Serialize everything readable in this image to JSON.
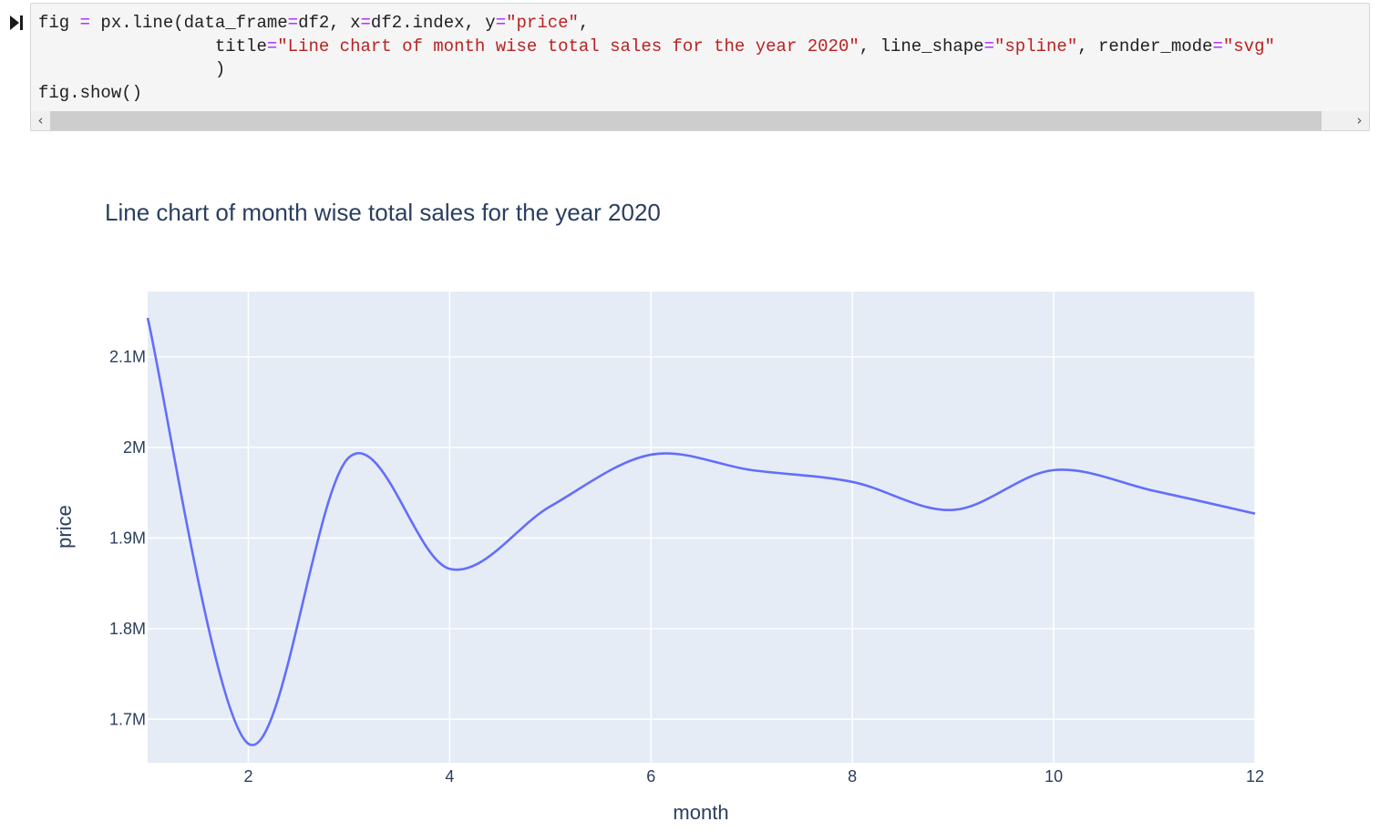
{
  "cell": {
    "code_lines": [
      [
        {
          "t": "fig "
        },
        {
          "t": "=",
          "c": "op"
        },
        {
          "t": " px.line(data_frame"
        },
        {
          "t": "=",
          "c": "op"
        },
        {
          "t": "df2, x"
        },
        {
          "t": "=",
          "c": "op"
        },
        {
          "t": "df2.index, y"
        },
        {
          "t": "=",
          "c": "op"
        },
        {
          "t": "\"price\"",
          "c": "str"
        },
        {
          "t": ","
        }
      ],
      [
        {
          "t": "                 title"
        },
        {
          "t": "=",
          "c": "op"
        },
        {
          "t": "\"Line chart of month wise total sales for the year 2020\"",
          "c": "str"
        },
        {
          "t": ", line_shape"
        },
        {
          "t": "=",
          "c": "op"
        },
        {
          "t": "\"spline\"",
          "c": "str"
        },
        {
          "t": ", render_mode"
        },
        {
          "t": "=",
          "c": "op"
        },
        {
          "t": "\"svg\"",
          "c": "str"
        }
      ],
      [
        {
          "t": "                 )"
        }
      ],
      [
        {
          "t": "fig.show()"
        }
      ]
    ],
    "scroll_left_glyph": "‹",
    "scroll_right_glyph": "›"
  },
  "colors": {
    "plot_bg": "#e5ecf6",
    "grid": "#ffffff",
    "line": "#636efa",
    "text": "#2a3f5f",
    "code_operator": "#aa22ff",
    "code_string": "#ba2121"
  },
  "chart_data": {
    "type": "line",
    "title": "Line chart of month wise total sales for the year 2020",
    "xlabel": "month",
    "ylabel": "price",
    "line_shape": "spline",
    "grid": true,
    "x": [
      1,
      2,
      3,
      4,
      5,
      6,
      7,
      8,
      9,
      10,
      11,
      12
    ],
    "series": [
      {
        "values": [
          2143000,
          1673000,
          1989000,
          1866000,
          1935000,
          1992000,
          1975000,
          1962000,
          1931000,
          1975000,
          1952000,
          1927000
        ]
      }
    ],
    "xlim": [
      1,
      12
    ],
    "ylim": [
      1652000,
      2172000
    ],
    "xticks": [
      2,
      4,
      6,
      8,
      10,
      12
    ],
    "xtick_labels": [
      "2",
      "4",
      "6",
      "8",
      "10",
      "12"
    ],
    "yticks": [
      1700000,
      1800000,
      1900000,
      2000000,
      2100000
    ],
    "ytick_labels": [
      "1.7M",
      "1.8M",
      "1.9M",
      "2M",
      "2.1M"
    ]
  }
}
